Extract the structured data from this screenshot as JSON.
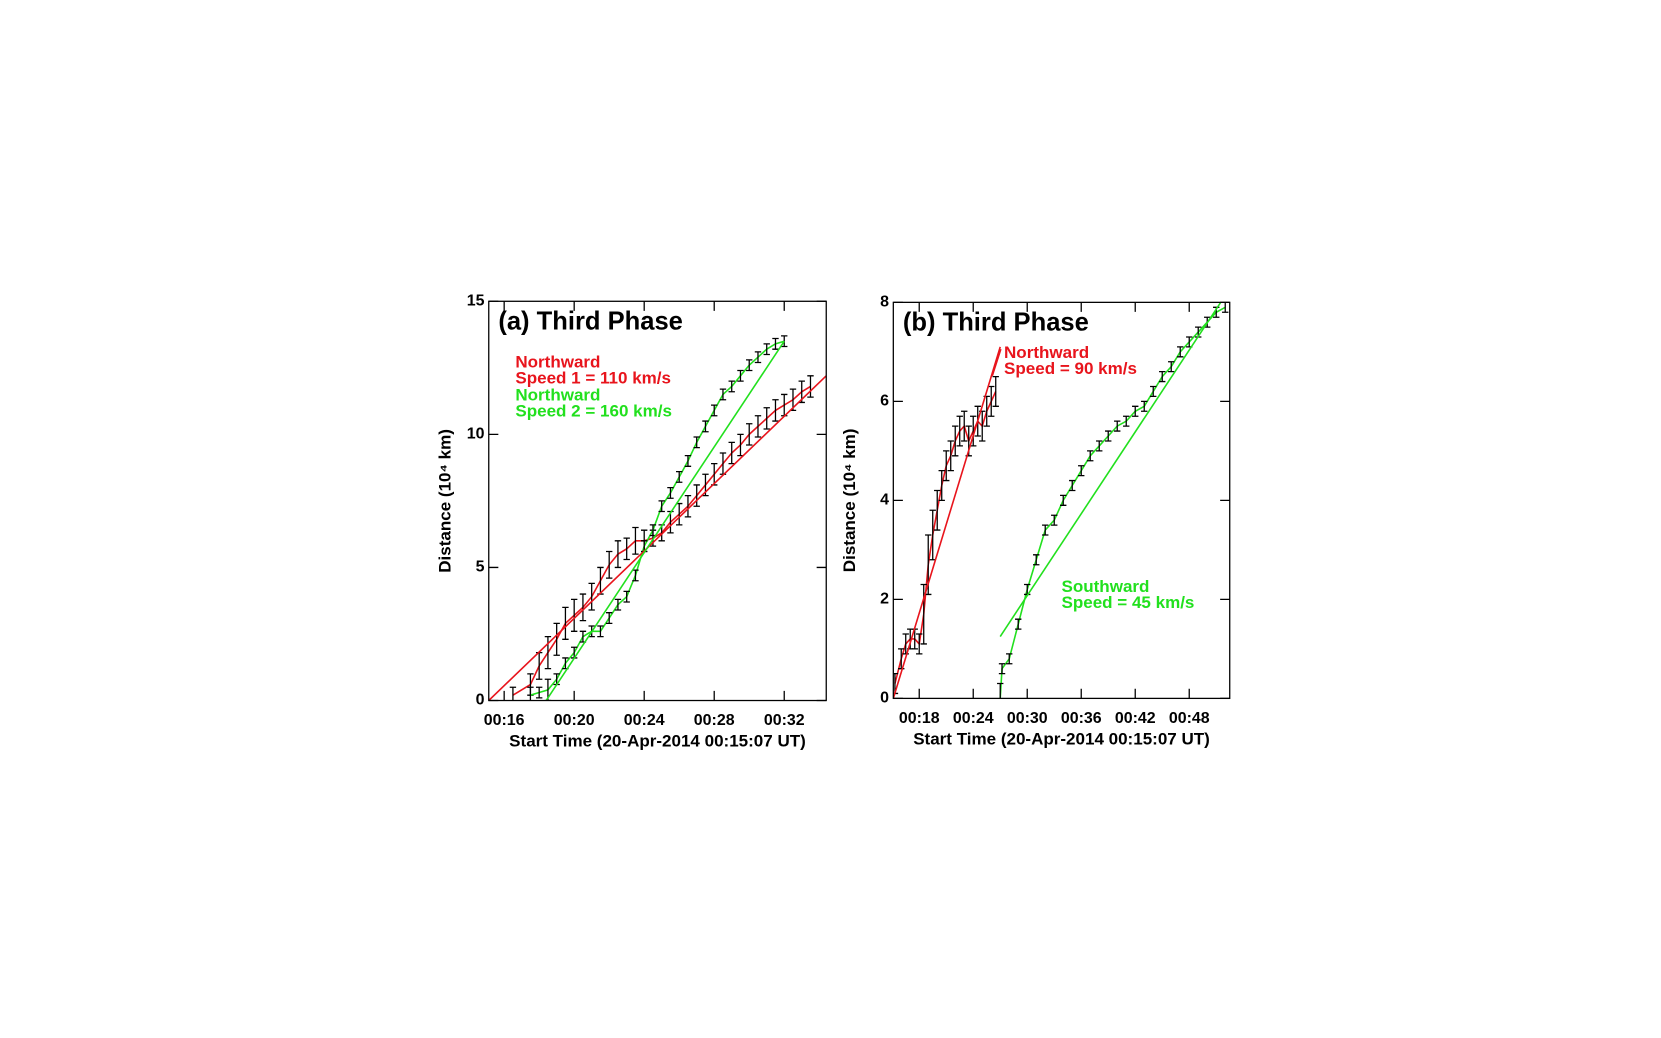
{
  "chart_data": [
    {
      "type": "line",
      "title": "(a) Third Phase",
      "xlabel": "Start Time (20-Apr-2014 00:15:07 UT)",
      "ylabel": "Distance (10⁴ km)",
      "xlim": [
        15.12,
        34.4
      ],
      "ylim": [
        0,
        15
      ],
      "xticks": [
        {
          "value": 16,
          "label": "00:16"
        },
        {
          "value": 20,
          "label": "00:20"
        },
        {
          "value": 24,
          "label": "00:24"
        },
        {
          "value": 28,
          "label": "00:28"
        },
        {
          "value": 32,
          "label": "00:32"
        }
      ],
      "yticks": [
        0,
        5,
        10,
        15
      ],
      "series": [
        {
          "color": "#e8141c",
          "errorbar_color": "#000000",
          "x": [
            16.5,
            17.5,
            18,
            18.5,
            19,
            19.5,
            20,
            20.5,
            21,
            21.5,
            22,
            22.5,
            23,
            23.5,
            24,
            24.5,
            25,
            25.5,
            26,
            26.5,
            27,
            27.5,
            28,
            28.5,
            29,
            29.5,
            30,
            30.5,
            31,
            31.5,
            32,
            32.5,
            33,
            33.5
          ],
          "values": [
            0.2,
            0.6,
            1.3,
            1.8,
            2.3,
            2.9,
            3.2,
            3.5,
            3.9,
            4.5,
            5.1,
            5.5,
            5.7,
            6.0,
            6.0,
            6.1,
            6.3,
            6.7,
            7.0,
            7.3,
            7.7,
            8.1,
            8.5,
            8.9,
            9.3,
            9.6,
            10.0,
            10.3,
            10.6,
            10.9,
            11.1,
            11.3,
            11.6,
            11.8
          ],
          "errors": [
            0.3,
            0.4,
            0.5,
            0.6,
            0.6,
            0.6,
            0.6,
            0.5,
            0.5,
            0.5,
            0.5,
            0.5,
            0.4,
            0.5,
            0.4,
            0.3,
            0.3,
            0.4,
            0.4,
            0.4,
            0.4,
            0.4,
            0.4,
            0.4,
            0.4,
            0.4,
            0.4,
            0.4,
            0.4,
            0.4,
            0.4,
            0.4,
            0.4,
            0.4
          ]
        },
        {
          "color": "#22e01e",
          "errorbar_color": "#000000",
          "x": [
            17.5,
            18,
            18.5,
            19,
            19.5,
            20,
            20.5,
            21,
            21.5,
            22,
            22.5,
            23,
            23.5,
            24,
            24.5,
            25,
            25.5,
            26,
            26.5,
            27,
            27.5,
            28,
            28.5,
            29,
            29.5,
            30,
            30.5,
            31,
            31.5,
            32
          ],
          "values": [
            0.2,
            0.3,
            0.4,
            0.8,
            1.4,
            1.8,
            2.4,
            2.6,
            2.6,
            3.1,
            3.6,
            3.9,
            4.7,
            5.8,
            6.4,
            7.3,
            7.8,
            8.4,
            9.0,
            9.7,
            10.3,
            10.9,
            11.5,
            11.8,
            12.2,
            12.6,
            12.9,
            13.2,
            13.4,
            13.5
          ],
          "errors": [
            0.3,
            0.2,
            0.4,
            0.2,
            0.2,
            0.2,
            0.2,
            0.2,
            0.2,
            0.2,
            0.2,
            0.2,
            0.2,
            0.2,
            0.2,
            0.2,
            0.2,
            0.2,
            0.2,
            0.2,
            0.2,
            0.2,
            0.2,
            0.2,
            0.2,
            0.2,
            0.2,
            0.2,
            0.2,
            0.2
          ]
        },
        {
          "color": "#e8141c",
          "x": [
            15.12,
            34.4
          ],
          "values": [
            0,
            12.2
          ]
        },
        {
          "color": "#22e01e",
          "x": [
            18.4,
            32
          ],
          "values": [
            0,
            13.5
          ]
        }
      ],
      "annotations": [
        {
          "text": "Northward",
          "color": "#e8141c"
        },
        {
          "text": "Speed 1 = 110 km/s",
          "color": "#e8141c"
        },
        {
          "text": "Northward",
          "color": "#22e01e"
        },
        {
          "text": "Speed 2 = 160 km/s",
          "color": "#22e01e"
        }
      ]
    },
    {
      "type": "line",
      "title": "(b) Third Phase",
      "xlabel": "Start Time (20-Apr-2014 00:15:07 UT)",
      "ylabel": "Distance (10⁴ km)",
      "xlim": [
        15.12,
        52.5
      ],
      "ylim": [
        0,
        8
      ],
      "xticks": [
        {
          "value": 18,
          "label": "00:18"
        },
        {
          "value": 24,
          "label": "00:24"
        },
        {
          "value": 30,
          "label": "00:30"
        },
        {
          "value": 36,
          "label": "00:36"
        },
        {
          "value": 42,
          "label": "00:42"
        },
        {
          "value": 48,
          "label": "00:48"
        }
      ],
      "yticks": [
        0,
        2,
        4,
        6,
        8
      ],
      "series": [
        {
          "color": "#e8141c",
          "errorbar_color": "#000000",
          "x": [
            15.3,
            16,
            16.5,
            17,
            17.5,
            18,
            18.5,
            19,
            19.5,
            20,
            20.5,
            21,
            21.5,
            22,
            22.5,
            23,
            23.5,
            24,
            24.5,
            25,
            25.5,
            26,
            26.5
          ],
          "values": [
            0.3,
            0.8,
            1.1,
            1.2,
            1.2,
            1.1,
            1.7,
            2.7,
            3.3,
            3.8,
            4.3,
            4.7,
            4.9,
            5.2,
            5.4,
            5.5,
            5.2,
            5.4,
            5.6,
            5.5,
            5.8,
            6.0,
            6.2
          ],
          "errors": [
            0.2,
            0.2,
            0.2,
            0.2,
            0.2,
            0.2,
            0.6,
            0.6,
            0.5,
            0.4,
            0.3,
            0.3,
            0.3,
            0.3,
            0.3,
            0.3,
            0.3,
            0.3,
            0.3,
            0.3,
            0.3,
            0.3,
            0.3
          ]
        },
        {
          "color": "#22e01e",
          "errorbar_color": "#000000",
          "x": [
            27,
            27.2,
            28,
            29,
            30,
            31,
            32,
            33,
            34,
            35,
            36,
            37,
            38,
            39,
            40,
            41,
            42,
            43,
            44,
            45,
            46,
            47,
            48,
            49,
            50,
            51,
            52
          ],
          "values": [
            0,
            0.6,
            0.8,
            1.5,
            2.2,
            2.8,
            3.4,
            3.6,
            4.0,
            4.3,
            4.6,
            4.9,
            5.1,
            5.3,
            5.5,
            5.6,
            5.8,
            5.9,
            6.2,
            6.5,
            6.7,
            7.0,
            7.2,
            7.4,
            7.6,
            7.8,
            7.9
          ],
          "errors": [
            0.3,
            0.1,
            0.1,
            0.1,
            0.1,
            0.1,
            0.1,
            0.1,
            0.1,
            0.1,
            0.1,
            0.1,
            0.1,
            0.1,
            0.1,
            0.1,
            0.1,
            0.1,
            0.1,
            0.1,
            0.1,
            0.1,
            0.1,
            0.1,
            0.1,
            0.1,
            0.1
          ]
        },
        {
          "color": "#e8141c",
          "x": [
            15.12,
            27
          ],
          "values": [
            0,
            7.1
          ]
        },
        {
          "color": "#22e01e",
          "x": [
            27,
            51.5
          ],
          "values": [
            1.25,
            8
          ]
        }
      ],
      "annotations": [
        {
          "text": "Northward",
          "color": "#e8141c"
        },
        {
          "text": "Speed = 90 km/s",
          "color": "#e8141c"
        },
        {
          "text": "Southward",
          "color": "#22e01e"
        },
        {
          "text": "Speed = 45 km/s",
          "color": "#22e01e"
        }
      ]
    }
  ]
}
